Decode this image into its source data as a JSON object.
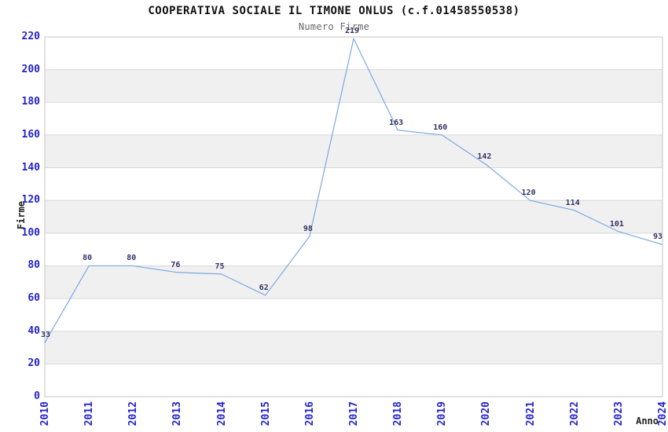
{
  "chart_data": {
    "type": "line",
    "title": "COOPERATIVA SOCIALE IL TIMONE ONLUS (c.f.01458550538)",
    "subtitle": "Numero Firme",
    "xlabel": "Anno",
    "ylabel": "Firme",
    "categories": [
      "2010",
      "2011",
      "2012",
      "2013",
      "2014",
      "2015",
      "2016",
      "2017",
      "2018",
      "2019",
      "2020",
      "2021",
      "2022",
      "2023",
      "2024"
    ],
    "values": [
      33,
      80,
      80,
      76,
      75,
      62,
      98,
      219,
      163,
      160,
      142,
      120,
      114,
      101,
      93
    ],
    "ylim": [
      0,
      220
    ],
    "ytick_step": 20,
    "grid": true,
    "legend_position": "none",
    "band_style": "alternating-horizontal",
    "colors": {
      "line": "#7da7e4",
      "tick_label": "#2323cb",
      "data_label": "#333366",
      "band": "#f0f0f0",
      "gridline": "#d8d8d8",
      "border": "#c4c4c4",
      "title": "#111111",
      "subtitle": "#666666",
      "axis_title": "#222222",
      "background": "#ffffff"
    }
  }
}
